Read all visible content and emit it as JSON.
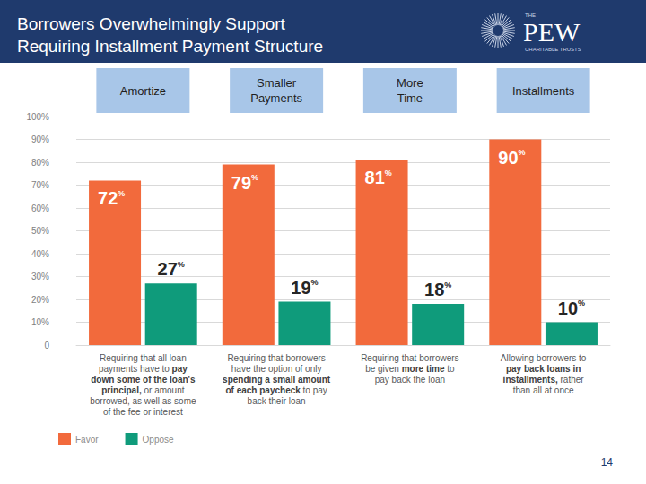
{
  "chart_data": {
    "type": "bar",
    "title": "Borrowers Overwhelmingly Support\nRequiring Installment Payment Structure",
    "categories": [
      "Requiring that all loan\npayments have to pay\ndown some of the loan's\nprincipal, or amount\nborrowed, as well as some\nof the fee or interest",
      "Requiring that borrowers\nhave the option of only\nspending a small amount\nof each paycheck to pay\nback their loan",
      "Requiring that borrowers\nbe given more time to\npay back the loan",
      "Allowing borrowers to\npay back loans in\ninstallments, rather\nthan all at once"
    ],
    "category_emphasis": [
      "pay\ndown some of the loan's\nprincipal,",
      "spending a small amount\nof each paycheck",
      "more time",
      "pay back loans in\ninstallments,"
    ],
    "series": [
      {
        "name": "Favor",
        "color": "#f26a3c",
        "values": [
          72,
          79,
          81,
          90
        ],
        "value_labels": [
          "72%",
          "79%",
          "81%",
          "90%"
        ]
      },
      {
        "name": "Oppose",
        "color": "#0f9b7b",
        "values": [
          27,
          19,
          18,
          10
        ],
        "value_labels": [
          "27%",
          "19%",
          "18%",
          "10%"
        ]
      }
    ],
    "ylim": [
      0,
      100
    ],
    "yticks": [
      0,
      {
        "value": 10,
        "label": "10%"
      },
      {
        "value": 20,
        "label": "20%"
      },
      {
        "value": 30,
        "label": "30%"
      },
      {
        "value": 40,
        "label": "40%"
      },
      {
        "value": 50,
        "label": "50%"
      },
      {
        "value": 60,
        "label": "60%"
      },
      {
        "value": 70,
        "label": "70%"
      },
      {
        "value": 80,
        "label": "80%"
      },
      {
        "value": 90,
        "label": "90%"
      },
      {
        "value": 100,
        "label": "100%"
      }
    ],
    "grid": true,
    "data_labels": true,
    "legend": "bottom-left",
    "annotations": {
      "column_headers": [
        "Amortize",
        "Smaller\nPayments",
        "More\nTime",
        "Installments"
      ],
      "logo": [
        "THE",
        "PEW",
        "CHARITABLE TRUSTS"
      ],
      "page_number": "14"
    }
  }
}
